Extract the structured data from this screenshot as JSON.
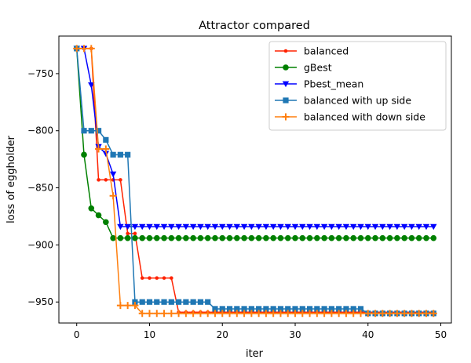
{
  "chart_data": {
    "type": "line",
    "title": "Attractor compared",
    "xlabel": "iter",
    "ylabel": "loss of eggholder",
    "xlim": [
      -2.45,
      51.45
    ],
    "ylim": [
      -968.4,
      -717.1
    ],
    "x_ticks": [
      0,
      10,
      20,
      30,
      40,
      50
    ],
    "y_ticks": [
      -950,
      -900,
      -850,
      -800,
      -750
    ],
    "legend_position": "upper right",
    "grid": false,
    "series": [
      {
        "name": "balanced",
        "color": "#ff2200",
        "marker": "point",
        "x": [
          0,
          1,
          2,
          3,
          4,
          5,
          6,
          7,
          8,
          9,
          10,
          11,
          12,
          13,
          14,
          15,
          16,
          17,
          18,
          19,
          20,
          21,
          22,
          23,
          24,
          25,
          26,
          27,
          28,
          29,
          30,
          31,
          32,
          33,
          34,
          35,
          36,
          37,
          38,
          39,
          40,
          41,
          42,
          43,
          44,
          45,
          46,
          47,
          48,
          49
        ],
        "y": [
          -728,
          -728,
          -728,
          -843,
          -843,
          -843,
          -843,
          -890,
          -890,
          -929,
          -929,
          -929,
          -929,
          -929,
          -959,
          -959,
          -959,
          -959,
          -959,
          -959,
          -959,
          -959,
          -959,
          -959,
          -959,
          -959,
          -959,
          -959,
          -959,
          -959,
          -959,
          -959,
          -959,
          -959,
          -959,
          -959,
          -959,
          -959,
          -959,
          -959,
          -959,
          -959,
          -959,
          -959,
          -959,
          -959,
          -959,
          -959,
          -959,
          -959
        ]
      },
      {
        "name": "gBest",
        "color": "#008000",
        "marker": "circle",
        "x": [
          0,
          1,
          2,
          3,
          4,
          5,
          6,
          7,
          8,
          9,
          10,
          11,
          12,
          13,
          14,
          15,
          16,
          17,
          18,
          19,
          20,
          21,
          22,
          23,
          24,
          25,
          26,
          27,
          28,
          29,
          30,
          31,
          32,
          33,
          34,
          35,
          36,
          37,
          38,
          39,
          40,
          41,
          42,
          43,
          44,
          45,
          46,
          47,
          48,
          49
        ],
        "y": [
          -728,
          -821,
          -868,
          -874,
          -880,
          -894,
          -894,
          -894,
          -894,
          -894,
          -894,
          -894,
          -894,
          -894,
          -894,
          -894,
          -894,
          -894,
          -894,
          -894,
          -894,
          -894,
          -894,
          -894,
          -894,
          -894,
          -894,
          -894,
          -894,
          -894,
          -894,
          -894,
          -894,
          -894,
          -894,
          -894,
          -894,
          -894,
          -894,
          -894,
          -894,
          -894,
          -894,
          -894,
          -894,
          -894,
          -894,
          -894,
          -894,
          -894
        ]
      },
      {
        "name": "Pbest_mean",
        "color": "#0000ff",
        "marker": "triangle-down",
        "x": [
          0,
          1,
          2,
          3,
          4,
          5,
          6,
          7,
          8,
          9,
          10,
          11,
          12,
          13,
          14,
          15,
          16,
          17,
          18,
          19,
          20,
          21,
          22,
          23,
          24,
          25,
          26,
          27,
          28,
          29,
          30,
          31,
          32,
          33,
          34,
          35,
          36,
          37,
          38,
          39,
          40,
          41,
          42,
          43,
          44,
          45,
          46,
          47,
          48,
          49
        ],
        "y": [
          -728,
          -728,
          -760,
          -814,
          -820,
          -838,
          -884,
          -884,
          -884,
          -884,
          -884,
          -884,
          -884,
          -884,
          -884,
          -884,
          -884,
          -884,
          -884,
          -884,
          -884,
          -884,
          -884,
          -884,
          -884,
          -884,
          -884,
          -884,
          -884,
          -884,
          -884,
          -884,
          -884,
          -884,
          -884,
          -884,
          -884,
          -884,
          -884,
          -884,
          -884,
          -884,
          -884,
          -884,
          -884,
          -884,
          -884,
          -884,
          -884,
          -884
        ]
      },
      {
        "name": "balanced with up side",
        "color": "#1f77b4",
        "marker": "square",
        "x": [
          0,
          1,
          2,
          3,
          4,
          5,
          6,
          7,
          8,
          9,
          10,
          11,
          12,
          13,
          14,
          15,
          16,
          17,
          18,
          19,
          20,
          21,
          22,
          23,
          24,
          25,
          26,
          27,
          28,
          29,
          30,
          31,
          32,
          33,
          34,
          35,
          36,
          37,
          38,
          39,
          40,
          41,
          42,
          43,
          44,
          45,
          46,
          47,
          48,
          49
        ],
        "y": [
          -728,
          -800,
          -800,
          -800,
          -808,
          -821,
          -821,
          -821,
          -950,
          -950,
          -950,
          -950,
          -950,
          -950,
          -950,
          -950,
          -950,
          -950,
          -950,
          -956,
          -956,
          -956,
          -956,
          -956,
          -956,
          -956,
          -956,
          -956,
          -956,
          -956,
          -956,
          -956,
          -956,
          -956,
          -956,
          -956,
          -956,
          -956,
          -956,
          -956,
          -960,
          -960,
          -960,
          -960,
          -960,
          -960,
          -960,
          -960,
          -960,
          -960
        ]
      },
      {
        "name": "balanced with down side",
        "color": "#ff7f0e",
        "marker": "plus",
        "x": [
          0,
          1,
          2,
          3,
          4,
          5,
          6,
          7,
          8,
          9,
          10,
          11,
          12,
          13,
          14,
          15,
          16,
          17,
          18,
          19,
          20,
          21,
          22,
          23,
          24,
          25,
          26,
          27,
          28,
          29,
          30,
          31,
          32,
          33,
          34,
          35,
          36,
          37,
          38,
          39,
          40,
          41,
          42,
          43,
          44,
          45,
          46,
          47,
          48,
          49
        ],
        "y": [
          -728,
          -728,
          -728,
          -816,
          -816,
          -857,
          -953,
          -953,
          -953,
          -960,
          -960,
          -960,
          -960,
          -960,
          -960,
          -960,
          -960,
          -960,
          -960,
          -960,
          -960,
          -960,
          -960,
          -960,
          -960,
          -960,
          -960,
          -960,
          -960,
          -960,
          -960,
          -960,
          -960,
          -960,
          -960,
          -960,
          -960,
          -960,
          -960,
          -960,
          -960,
          -960,
          -960,
          -960,
          -960,
          -960,
          -960,
          -960,
          -960,
          -960
        ]
      }
    ]
  }
}
